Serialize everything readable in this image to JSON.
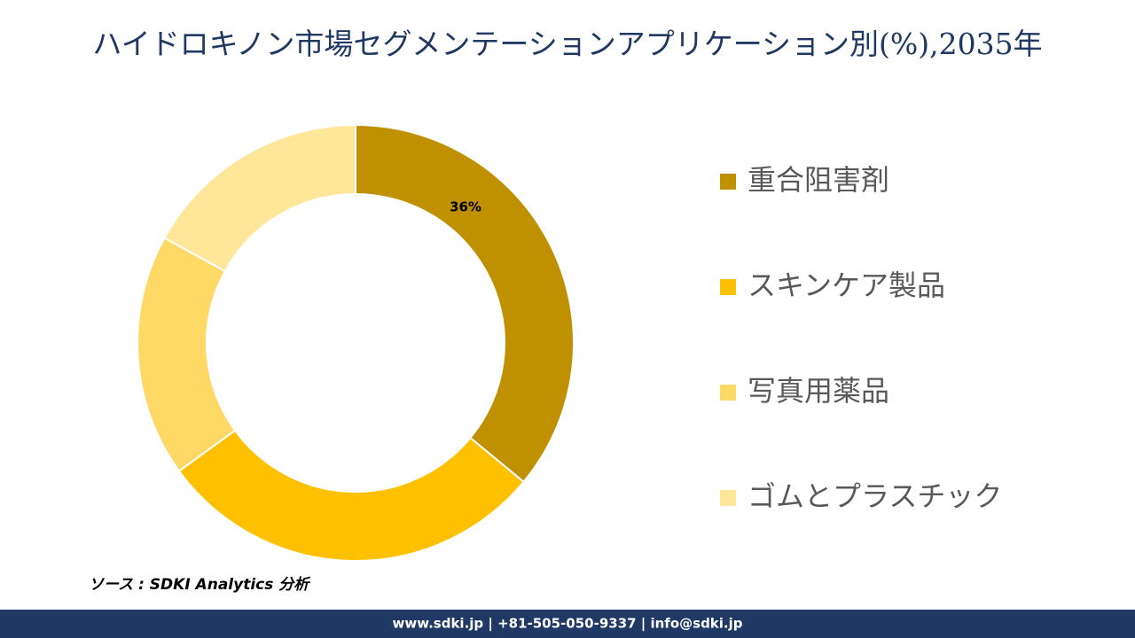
{
  "chart_data": {
    "type": "donut",
    "title": "ハイドロキノン市場セグメンテーションアプリケーション別(%),2035年",
    "categories": [
      "重合阻害剤",
      "スキンケア製品",
      "写真用薬品",
      "ゴムとプラスチック"
    ],
    "values": [
      36,
      29,
      18,
      17
    ],
    "value_labels": [
      "36%",
      null,
      null,
      null
    ],
    "colors": [
      "#BF9000",
      "#FFC000",
      "#FFD966",
      "#FFE699"
    ],
    "legend": "right",
    "source": "ソース : SDKI Analytics 分析"
  },
  "footer": "www.sdki.jp | +81-505-050-9337 | info@sdki.jp"
}
